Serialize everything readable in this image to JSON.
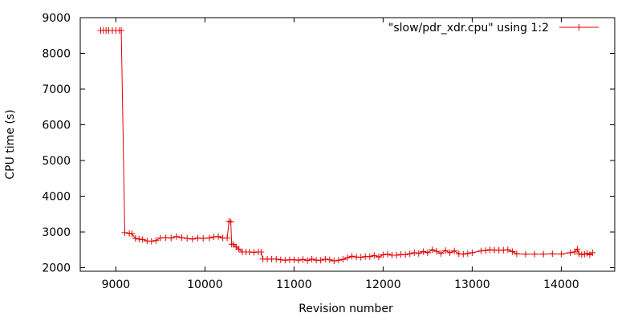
{
  "chart_data": {
    "type": "line",
    "title": "",
    "xlabel": "Revision number",
    "ylabel": "CPU time (s)",
    "xlim": [
      8600,
      14600
    ],
    "ylim": [
      1900,
      9000
    ],
    "xticks": [
      9000,
      10000,
      11000,
      12000,
      13000,
      14000
    ],
    "yticks": [
      2000,
      3000,
      4000,
      5000,
      6000,
      7000,
      8000,
      9000
    ],
    "legend_position": "top-right",
    "grid": false,
    "series": [
      {
        "name": "\"slow/pdr_xdr.cpu\" using 1:2",
        "color": "#e00000",
        "marker": "plus",
        "points": [
          [
            8830,
            8640
          ],
          [
            8860,
            8640
          ],
          [
            8890,
            8640
          ],
          [
            8920,
            8640
          ],
          [
            8960,
            8640
          ],
          [
            9000,
            8640
          ],
          [
            9040,
            8640
          ],
          [
            9060,
            8640
          ],
          [
            9100,
            2980
          ],
          [
            9150,
            2960
          ],
          [
            9180,
            2950
          ],
          [
            9220,
            2820
          ],
          [
            9260,
            2800
          ],
          [
            9300,
            2790
          ],
          [
            9350,
            2750
          ],
          [
            9400,
            2740
          ],
          [
            9450,
            2760
          ],
          [
            9500,
            2830
          ],
          [
            9560,
            2840
          ],
          [
            9620,
            2830
          ],
          [
            9680,
            2870
          ],
          [
            9740,
            2840
          ],
          [
            9800,
            2820
          ],
          [
            9860,
            2800
          ],
          [
            9920,
            2830
          ],
          [
            9980,
            2820
          ],
          [
            10050,
            2830
          ],
          [
            10100,
            2860
          ],
          [
            10150,
            2870
          ],
          [
            10200,
            2830
          ],
          [
            10250,
            2830
          ],
          [
            10270,
            3300
          ],
          [
            10290,
            3280
          ],
          [
            10300,
            2660
          ],
          [
            10320,
            2650
          ],
          [
            10350,
            2580
          ],
          [
            10380,
            2520
          ],
          [
            10420,
            2440
          ],
          [
            10460,
            2440
          ],
          [
            10500,
            2440
          ],
          [
            10550,
            2430
          ],
          [
            10600,
            2440
          ],
          [
            10630,
            2440
          ],
          [
            10650,
            2240
          ],
          [
            10700,
            2240
          ],
          [
            10750,
            2240
          ],
          [
            10800,
            2240
          ],
          [
            10850,
            2220
          ],
          [
            10900,
            2210
          ],
          [
            10950,
            2220
          ],
          [
            11000,
            2220
          ],
          [
            11050,
            2210
          ],
          [
            11100,
            2230
          ],
          [
            11150,
            2200
          ],
          [
            11200,
            2240
          ],
          [
            11250,
            2210
          ],
          [
            11300,
            2210
          ],
          [
            11350,
            2240
          ],
          [
            11400,
            2220
          ],
          [
            11450,
            2190
          ],
          [
            11500,
            2210
          ],
          [
            11550,
            2230
          ],
          [
            11600,
            2280
          ],
          [
            11650,
            2320
          ],
          [
            11700,
            2300
          ],
          [
            11750,
            2290
          ],
          [
            11800,
            2310
          ],
          [
            11850,
            2310
          ],
          [
            11900,
            2340
          ],
          [
            11950,
            2300
          ],
          [
            12000,
            2360
          ],
          [
            12050,
            2380
          ],
          [
            12100,
            2350
          ],
          [
            12150,
            2350
          ],
          [
            12200,
            2370
          ],
          [
            12250,
            2360
          ],
          [
            12300,
            2390
          ],
          [
            12350,
            2420
          ],
          [
            12400,
            2400
          ],
          [
            12450,
            2450
          ],
          [
            12500,
            2420
          ],
          [
            12550,
            2500
          ],
          [
            12600,
            2460
          ],
          [
            12650,
            2400
          ],
          [
            12700,
            2480
          ],
          [
            12750,
            2420
          ],
          [
            12800,
            2470
          ],
          [
            12850,
            2390
          ],
          [
            12900,
            2380
          ],
          [
            12950,
            2400
          ],
          [
            13000,
            2420
          ],
          [
            13100,
            2470
          ],
          [
            13150,
            2480
          ],
          [
            13200,
            2500
          ],
          [
            13250,
            2490
          ],
          [
            13300,
            2490
          ],
          [
            13350,
            2490
          ],
          [
            13400,
            2500
          ],
          [
            13450,
            2450
          ],
          [
            13500,
            2390
          ],
          [
            13600,
            2380
          ],
          [
            13700,
            2380
          ],
          [
            13800,
            2380
          ],
          [
            13900,
            2390
          ],
          [
            14000,
            2380
          ],
          [
            14100,
            2420
          ],
          [
            14150,
            2440
          ],
          [
            14180,
            2520
          ],
          [
            14200,
            2390
          ],
          [
            14230,
            2370
          ],
          [
            14260,
            2380
          ],
          [
            14290,
            2400
          ],
          [
            14320,
            2360
          ],
          [
            14350,
            2420
          ]
        ]
      }
    ]
  }
}
